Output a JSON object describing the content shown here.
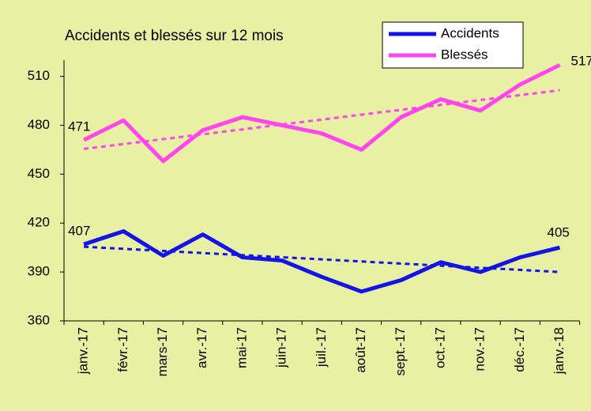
{
  "chart_data": {
    "type": "line",
    "title": "Accidents et blessés sur 12 mois",
    "categories": [
      "janv.-17",
      "févr.-17",
      "mars-17",
      "avr.-17",
      "mai-17",
      "juin-17",
      "juil.-17",
      "août-17",
      "sept.-17",
      "oct.-17",
      "nov.-17",
      "déc.-17",
      "janv.-18"
    ],
    "series": [
      {
        "name": "Accidents",
        "color": "#1414e6",
        "values": [
          407,
          415,
          400,
          413,
          399,
          397,
          387,
          378,
          385,
          396,
          390,
          399,
          405
        ],
        "trend": [
          405.5,
          390
        ]
      },
      {
        "name": "Blessés",
        "color": "#ff44f0",
        "values": [
          471,
          483,
          458,
          477,
          485,
          480,
          475,
          465,
          485,
          496,
          489,
          505,
          517
        ],
        "trend": [
          465.5,
          501.5
        ]
      }
    ],
    "ylim": [
      360,
      520
    ],
    "yticks": [
      360,
      390,
      420,
      450,
      480,
      510
    ],
    "grid": false,
    "legend": "top-right"
  }
}
